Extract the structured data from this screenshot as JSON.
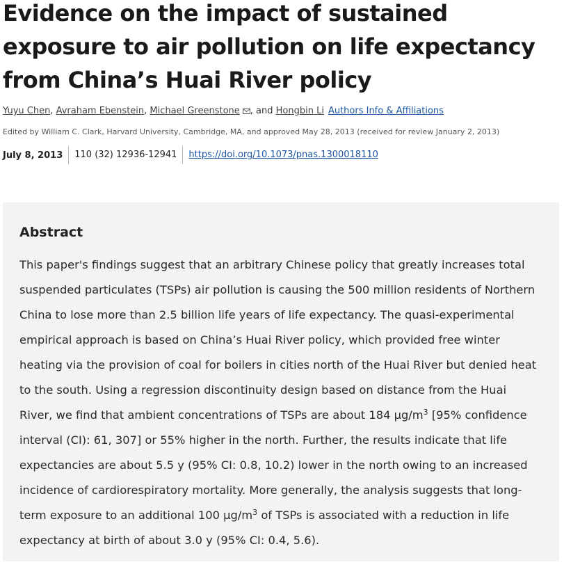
{
  "article": {
    "title": "Evidence on the impact of sustained exposure to air pollution on life expectancy from China’s Huai River policy",
    "authors": [
      "Yuyu Chen",
      "Avraham Ebenstein",
      "Michael Greenstone",
      "Hongbin Li"
    ],
    "author_sep": ", ",
    "author_and": ", and ",
    "affiliations_link": "Authors Info & Affiliations",
    "edited_by": "Edited by William C. Clark, Harvard University, Cambridge, MA, and approved May 28, 2013 (received for review January 2, 2013)",
    "date": "July 8, 2013",
    "citation": "110 (32) 12936-12941",
    "doi": "https://doi.org/10.1073/pnas.1300018110"
  },
  "abstract": {
    "heading": "Abstract",
    "part1": "This paper's findings suggest that an arbitrary Chinese policy that greatly increases total suspended particulates (TSPs) air pollution is causing the 500 million residents of Northern China to lose more than 2.5 billion life years of life expectancy. The quasi-experimental empirical approach is based on China’s Huai River policy, which provided free winter heating via the provision of coal for boilers in cities north of the Huai River but denied heat to the south. Using a regression discontinuity design based on distance from the Huai River, we find that ambient concentrations of TSPs are about 184 μg/m",
    "sup1": "3",
    "part2": " [95% confidence interval (CI): 61, 307] or 55% higher in the north. Further, the results indicate that life expectancies are about 5.5 y (95% CI: 0.8, 10.2) lower in the north owing to an increased incidence of cardiorespiratory mortality. More generally, the analysis suggests that long-term exposure to an additional 100 μg/m",
    "sup2": "3",
    "part3": " of TSPs is associated with a reduction in life expectancy at birth of about 3.0 y (95% CI: 0.4, 5.6)."
  },
  "icons": {
    "email": "envelope-icon"
  },
  "colors": {
    "link": "#1e56a0",
    "abstract_bg": "#f3f3f3"
  }
}
